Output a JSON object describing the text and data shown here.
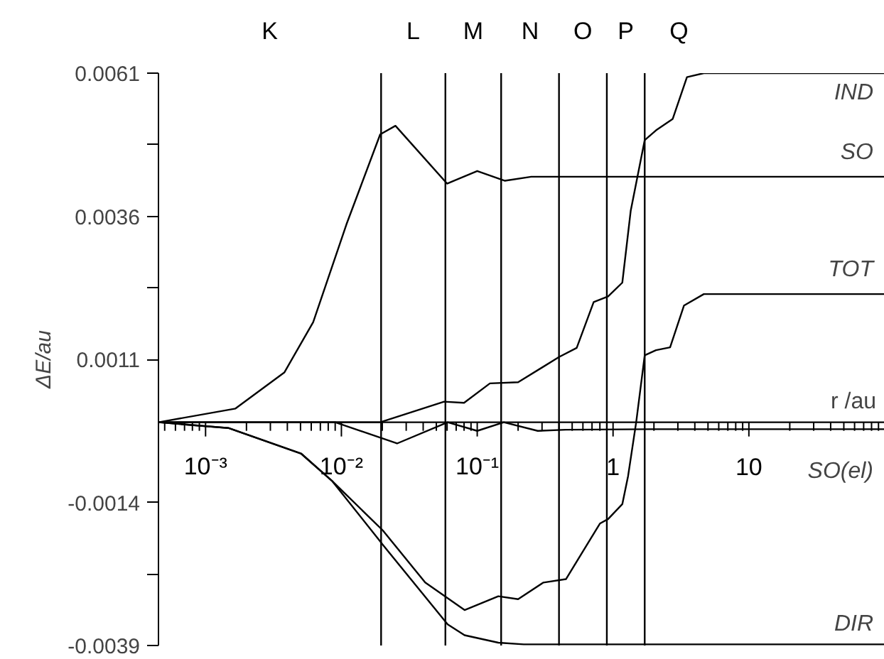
{
  "chart_data": {
    "type": "line",
    "ylabel": "ΔE/au",
    "xlabel": "r /au",
    "log": "x",
    "xlim": [
      0.00045,
      100
    ],
    "ylim": [
      -0.0039,
      0.0061
    ],
    "yticks": [
      0.0061,
      {
        "value": 0.00485,
        "label": null
      },
      0.0036,
      {
        "value": 0.00235,
        "label": null
      },
      0.0011,
      -0.0014,
      {
        "value": -0.00265,
        "label": null
      },
      -0.0039
    ],
    "xticks": [
      {
        "value": 0.0005,
        "label": null
      },
      {
        "value": 0.0006,
        "label": null
      },
      {
        "value": 0.0007,
        "label": null
      },
      {
        "value": 0.0008,
        "label": null
      },
      {
        "value": 0.0009,
        "label": null
      },
      {
        "value": 0.001,
        "label": "10⁻³"
      },
      {
        "value": 0.002,
        "label": null
      },
      {
        "value": 0.003,
        "label": null
      },
      {
        "value": 0.004,
        "label": null
      },
      {
        "value": 0.005,
        "label": null
      },
      {
        "value": 0.006,
        "label": null
      },
      {
        "value": 0.007,
        "label": null
      },
      {
        "value": 0.008,
        "label": null
      },
      {
        "value": 0.009,
        "label": null
      },
      {
        "value": 0.01,
        "label": "10⁻²"
      },
      {
        "value": 0.02,
        "label": null
      },
      {
        "value": 0.03,
        "label": null
      },
      {
        "value": 0.04,
        "label": null
      },
      {
        "value": 0.05,
        "label": null
      },
      {
        "value": 0.06,
        "label": null
      },
      {
        "value": 0.07,
        "label": null
      },
      {
        "value": 0.08,
        "label": null
      },
      {
        "value": 0.09,
        "label": null
      },
      {
        "value": 0.1,
        "label": "10⁻¹"
      },
      {
        "value": 0.2,
        "label": null
      },
      {
        "value": 0.3,
        "label": null
      },
      {
        "value": 0.4,
        "label": null
      },
      {
        "value": 0.5,
        "label": null
      },
      {
        "value": 0.6,
        "label": null
      },
      {
        "value": 0.7,
        "label": null
      },
      {
        "value": 0.8,
        "label": null
      },
      {
        "value": 0.9,
        "label": null
      },
      1,
      {
        "value": 2,
        "label": null
      },
      {
        "value": 3,
        "label": null
      },
      {
        "value": 4,
        "label": null
      },
      {
        "value": 5,
        "label": null
      },
      {
        "value": 6,
        "label": null
      },
      {
        "value": 7,
        "label": null
      },
      {
        "value": 8,
        "label": null
      },
      {
        "value": 9,
        "label": null
      },
      10,
      {
        "value": 20,
        "label": null
      },
      {
        "value": 30,
        "label": null
      },
      {
        "value": 40,
        "label": null
      },
      {
        "value": 50,
        "label": null
      },
      {
        "value": 60,
        "label": null
      },
      {
        "value": 70,
        "label": null
      },
      {
        "value": 80,
        "label": null
      },
      {
        "value": 90,
        "label": null
      }
    ],
    "grid": false,
    "marker": "none",
    "line_style": "solid",
    "series": [
      {
        "name": "IND",
        "color": "#000000",
        "x": [
          0.00045,
          0.01,
          0.0193,
          0.057,
          0.08,
          0.124,
          0.2,
          0.4,
          0.54,
          0.72,
          0.92,
          1.17,
          1.35,
          1.71,
          2.07,
          2.75,
          3.5,
          4.66,
          100
        ],
        "values": [
          0,
          0,
          0,
          0.00036,
          0.00034,
          0.00068,
          0.0007,
          0.00114,
          0.0013,
          0.0021,
          0.0022,
          0.00244,
          0.0037,
          0.00493,
          0.0051,
          0.0053,
          0.00603,
          0.0061,
          0.0061
        ]
      },
      {
        "name": "SO",
        "color": "#000000",
        "x": [
          0.00045,
          0.00166,
          0.0038,
          0.0062,
          0.0109,
          0.0193,
          0.025,
          0.06,
          0.1,
          0.16,
          0.25,
          100
        ],
        "values": [
          0,
          0.00024,
          0.00087,
          0.00175,
          0.00346,
          0.00503,
          0.00518,
          0.00417,
          0.00439,
          0.00422,
          0.00429,
          0.00429
        ]
      },
      {
        "name": "TOT",
        "color": "#000000",
        "x": [
          0.00045,
          0.00147,
          0.00507,
          0.00858,
          0.0202,
          0.0414,
          0.0807,
          0.143,
          0.2,
          0.307,
          0.45,
          0.8,
          0.92,
          1.17,
          1.29,
          1.48,
          1.71,
          2.07,
          2.63,
          3.33,
          4.66,
          100
        ],
        "values": [
          0,
          -0.0001,
          -0.00055,
          -0.00103,
          -0.00189,
          -0.0028,
          -0.00328,
          -0.00304,
          -0.00309,
          -0.0028,
          -0.00274,
          -0.00177,
          -0.00169,
          -0.00143,
          -0.00094,
          0,
          0.00117,
          0.00126,
          0.00131,
          0.00204,
          0.00224,
          0.00224
        ]
      },
      {
        "name": "DIR",
        "color": "#000000",
        "x": [
          0.00045,
          0.00147,
          0.00507,
          0.00858,
          0.0202,
          0.0606,
          0.0807,
          0.143,
          0.22,
          100
        ],
        "values": [
          0,
          -0.0001,
          -0.00055,
          -0.00103,
          -0.00214,
          -0.00353,
          -0.00372,
          -0.00385,
          -0.00388,
          -0.00388
        ]
      },
      {
        "name": "SO(el)",
        "color": "#000000",
        "x": [
          0.00045,
          0.009,
          0.0257,
          0.0606,
          0.1,
          0.157,
          0.279,
          0.45,
          1.9,
          100
        ],
        "values": [
          0,
          0,
          -0.00037,
          0,
          -0.00015,
          0,
          -0.00015,
          -0.00013,
          -0.00012,
          -0.00012
        ]
      }
    ],
    "ref_lines": [
      {
        "axis": "x",
        "value": 0.0196
      },
      {
        "axis": "x",
        "value": 0.0583
      },
      {
        "axis": "x",
        "value": 0.15
      },
      {
        "axis": "x",
        "value": 0.4
      },
      {
        "axis": "x",
        "value": 0.9
      },
      {
        "axis": "x",
        "value": 1.71
      }
    ],
    "annotations": [
      "K",
      "L",
      "M",
      "N",
      "O",
      "P",
      "Q"
    ]
  }
}
